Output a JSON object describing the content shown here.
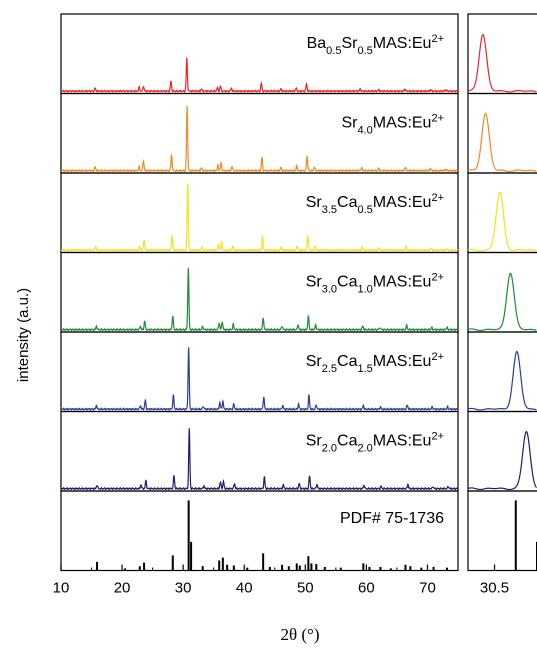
{
  "chart_data": {
    "type": "line",
    "xlabel": "2θ (°)",
    "ylabel": "intensity (a.u.)",
    "xlim": [
      10,
      75
    ],
    "xticks": [
      10,
      20,
      30,
      40,
      50,
      60,
      70
    ],
    "zoom_xlim": [
      30.0,
      31.3
    ],
    "zoom_xticks": [
      30.5
    ],
    "zoom_tick_labels": [
      "30.5"
    ],
    "series": [
      {
        "name": "Ba0.5Sr0.5MAS:Eu2+",
        "label_parts": [
          {
            "t": "Ba"
          },
          {
            "t": "0.5",
            "sub": true
          },
          {
            "t": "Sr"
          },
          {
            "t": "0.5",
            "sub": true
          },
          {
            "t": "MAS:Eu"
          },
          {
            "t": "2+",
            "sup": true
          }
        ],
        "color": "#e8262a",
        "peak_shift": -0.35,
        "zoom_center": 30.28,
        "peaks": [
          [
            15.6,
            0.04
          ],
          [
            22.8,
            0.05
          ],
          [
            23.5,
            0.07
          ],
          [
            28.0,
            0.14
          ],
          [
            30.6,
            0.45
          ],
          [
            33.0,
            0.03
          ],
          [
            35.6,
            0.05
          ],
          [
            36.1,
            0.07
          ],
          [
            37.9,
            0.04
          ],
          [
            42.8,
            0.11
          ],
          [
            46.0,
            0.03
          ],
          [
            48.5,
            0.04
          ],
          [
            50.2,
            0.1
          ],
          [
            59.0,
            0.03
          ],
          [
            62.0,
            0.02
          ],
          [
            66.3,
            0.03
          ],
          [
            70.5,
            0.02
          ],
          [
            73.0,
            0.02
          ]
        ]
      },
      {
        "name": "Sr4.0MAS:Eu2+",
        "label_parts": [
          {
            "t": "Sr"
          },
          {
            "t": "4.0",
            "sub": true
          },
          {
            "t": "MAS:Eu"
          },
          {
            "t": "2+",
            "sup": true
          }
        ],
        "color": "#f08a24",
        "peak_shift": -0.3,
        "zoom_center": 30.33,
        "peaks": [
          [
            15.6,
            0.05
          ],
          [
            22.8,
            0.05
          ],
          [
            23.5,
            0.14
          ],
          [
            28.1,
            0.22
          ],
          [
            30.65,
            0.88
          ],
          [
            33.0,
            0.04
          ],
          [
            35.7,
            0.07
          ],
          [
            36.2,
            0.1
          ],
          [
            38.0,
            0.06
          ],
          [
            42.9,
            0.18
          ],
          [
            46.0,
            0.04
          ],
          [
            48.6,
            0.06
          ],
          [
            50.3,
            0.2
          ],
          [
            51.5,
            0.05
          ],
          [
            59.2,
            0.04
          ],
          [
            62.0,
            0.03
          ],
          [
            66.4,
            0.05
          ],
          [
            70.5,
            0.03
          ],
          [
            73.0,
            0.02
          ]
        ]
      },
      {
        "name": "Sr3.5Ca0.5MAS:Eu2+",
        "label_parts": [
          {
            "t": "Sr"
          },
          {
            "t": "3.5",
            "sub": true
          },
          {
            "t": "Ca"
          },
          {
            "t": "0.5",
            "sub": true
          },
          {
            "t": "MAS:Eu"
          },
          {
            "t": "2+",
            "sup": true
          }
        ],
        "color": "#f2e31e",
        "peak_shift": -0.2,
        "zoom_center": 30.6,
        "peaks": [
          [
            15.7,
            0.05
          ],
          [
            22.9,
            0.05
          ],
          [
            23.6,
            0.14
          ],
          [
            28.2,
            0.21
          ],
          [
            30.75,
            0.92
          ],
          [
            33.1,
            0.04
          ],
          [
            35.8,
            0.08
          ],
          [
            36.3,
            0.11
          ],
          [
            38.1,
            0.06
          ],
          [
            43.0,
            0.19
          ],
          [
            46.1,
            0.04
          ],
          [
            48.7,
            0.06
          ],
          [
            50.4,
            0.21
          ],
          [
            51.6,
            0.05
          ],
          [
            59.3,
            0.04
          ],
          [
            62.1,
            0.03
          ],
          [
            66.5,
            0.05
          ],
          [
            70.6,
            0.03
          ],
          [
            73.1,
            0.02
          ]
        ]
      },
      {
        "name": "Sr3.0Ca1.0MAS:Eu2+",
        "label_parts": [
          {
            "t": "Sr"
          },
          {
            "t": "3.0",
            "sub": true
          },
          {
            "t": "Ca"
          },
          {
            "t": "1.0",
            "sub": true
          },
          {
            "t": "MAS:Eu"
          },
          {
            "t": "2+",
            "sup": true
          }
        ],
        "color": "#1f8a37",
        "peak_shift": -0.1,
        "zoom_center": 30.8,
        "peaks": [
          [
            15.8,
            0.05
          ],
          [
            23.0,
            0.05
          ],
          [
            23.7,
            0.12
          ],
          [
            28.3,
            0.19
          ],
          [
            30.85,
            0.85
          ],
          [
            33.2,
            0.04
          ],
          [
            35.9,
            0.09
          ],
          [
            36.4,
            0.11
          ],
          [
            38.2,
            0.07
          ],
          [
            43.1,
            0.17
          ],
          [
            46.2,
            0.05
          ],
          [
            48.8,
            0.07
          ],
          [
            50.5,
            0.19
          ],
          [
            51.7,
            0.06
          ],
          [
            59.4,
            0.05
          ],
          [
            62.2,
            0.03
          ],
          [
            66.6,
            0.06
          ],
          [
            70.7,
            0.03
          ],
          [
            73.2,
            0.03
          ]
        ]
      },
      {
        "name": "Sr2.5Ca1.5MAS:Eu2+",
        "label_parts": [
          {
            "t": "Sr"
          },
          {
            "t": "2.5",
            "sub": true
          },
          {
            "t": "Ca"
          },
          {
            "t": "1.5",
            "sub": true
          },
          {
            "t": "MAS:Eu"
          },
          {
            "t": "2+",
            "sup": true
          }
        ],
        "color": "#2b3d97",
        "peak_shift": -0.05,
        "zoom_center": 30.92,
        "peaks": [
          [
            15.8,
            0.05
          ],
          [
            23.0,
            0.05
          ],
          [
            23.8,
            0.12
          ],
          [
            28.4,
            0.19
          ],
          [
            30.9,
            0.84
          ],
          [
            33.3,
            0.04
          ],
          [
            36.0,
            0.09
          ],
          [
            36.5,
            0.11
          ],
          [
            38.3,
            0.07
          ],
          [
            43.2,
            0.17
          ],
          [
            46.3,
            0.05
          ],
          [
            48.9,
            0.07
          ],
          [
            50.6,
            0.19
          ],
          [
            51.8,
            0.06
          ],
          [
            59.5,
            0.05
          ],
          [
            62.3,
            0.03
          ],
          [
            66.7,
            0.06
          ],
          [
            70.8,
            0.03
          ],
          [
            73.3,
            0.03
          ]
        ]
      },
      {
        "name": "Sr2.0Ca2.0MAS:Eu2+",
        "label_parts": [
          {
            "t": "Sr"
          },
          {
            "t": "2.0",
            "sub": true
          },
          {
            "t": "Ca"
          },
          {
            "t": "2.0",
            "sub": true
          },
          {
            "t": "MAS:Eu"
          },
          {
            "t": "2+",
            "sup": true
          }
        ],
        "color": "#1c1f6b",
        "peak_shift": 0,
        "zoom_center": 31.1,
        "peaks": [
          [
            15.9,
            0.05
          ],
          [
            23.1,
            0.05
          ],
          [
            23.9,
            0.11
          ],
          [
            28.5,
            0.18
          ],
          [
            31.0,
            0.82
          ],
          [
            33.4,
            0.04
          ],
          [
            36.1,
            0.09
          ],
          [
            36.6,
            0.1
          ],
          [
            38.4,
            0.07
          ],
          [
            43.3,
            0.16
          ],
          [
            46.4,
            0.05
          ],
          [
            49.0,
            0.07
          ],
          [
            50.7,
            0.18
          ],
          [
            51.9,
            0.06
          ],
          [
            59.6,
            0.05
          ],
          [
            62.4,
            0.03
          ],
          [
            66.8,
            0.06
          ],
          [
            70.9,
            0.03
          ],
          [
            73.4,
            0.03
          ]
        ]
      }
    ],
    "reference": {
      "name": "PDF# 75-1736",
      "color": "#000000",
      "sticks": [
        [
          15.9,
          0.12
        ],
        [
          20.5,
          0.03
        ],
        [
          22.9,
          0.06
        ],
        [
          23.6,
          0.11
        ],
        [
          28.3,
          0.21
        ],
        [
          30.9,
          0.98
        ],
        [
          31.3,
          0.4
        ],
        [
          33.2,
          0.06
        ],
        [
          35.9,
          0.14
        ],
        [
          36.5,
          0.18
        ],
        [
          37.2,
          0.08
        ],
        [
          38.3,
          0.07
        ],
        [
          40.5,
          0.04
        ],
        [
          43.1,
          0.24
        ],
        [
          44.2,
          0.05
        ],
        [
          46.2,
          0.08
        ],
        [
          47.3,
          0.06
        ],
        [
          48.6,
          0.1
        ],
        [
          49.1,
          0.07
        ],
        [
          50.5,
          0.2
        ],
        [
          51.0,
          0.1
        ],
        [
          51.8,
          0.09
        ],
        [
          53.2,
          0.05
        ],
        [
          55.8,
          0.04
        ],
        [
          59.5,
          0.1
        ],
        [
          60.5,
          0.05
        ],
        [
          62.3,
          0.05
        ],
        [
          64.0,
          0.03
        ],
        [
          66.4,
          0.08
        ],
        [
          67.2,
          0.06
        ],
        [
          69.0,
          0.04
        ],
        [
          71.0,
          0.05
        ],
        [
          73.2,
          0.04
        ]
      ]
    }
  }
}
